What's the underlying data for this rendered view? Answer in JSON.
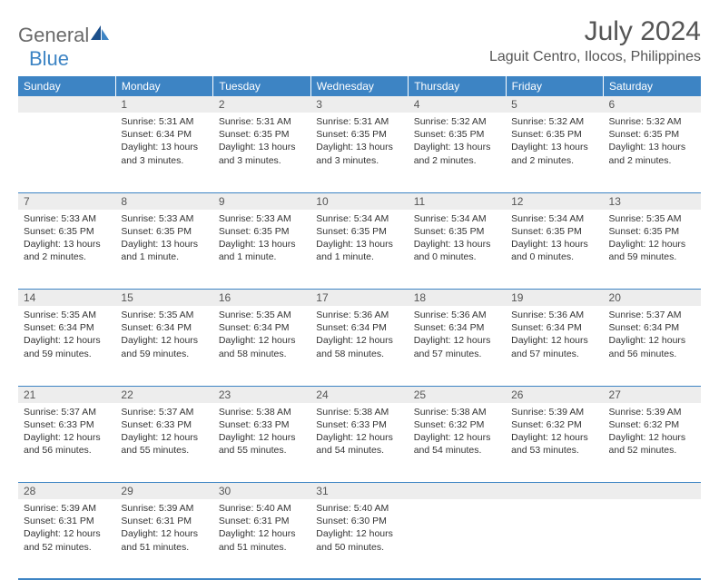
{
  "logo": {
    "text1": "General",
    "text2": "Blue"
  },
  "title": "July 2024",
  "location": "Laguit Centro, Ilocos, Philippines",
  "colors": {
    "header_bg": "#3d84c4",
    "daynum_bg": "#ededed",
    "rule": "#3d84c4",
    "logo_gray": "#6a6a6a",
    "logo_blue": "#3d84c4"
  },
  "weekdays": [
    "Sunday",
    "Monday",
    "Tuesday",
    "Wednesday",
    "Thursday",
    "Friday",
    "Saturday"
  ],
  "weeks": [
    {
      "nums": [
        "",
        "1",
        "2",
        "3",
        "4",
        "5",
        "6"
      ],
      "cells": [
        {
          "sunrise": "",
          "sunset": "",
          "daylight": ""
        },
        {
          "sunrise": "Sunrise: 5:31 AM",
          "sunset": "Sunset: 6:34 PM",
          "daylight": "Daylight: 13 hours and 3 minutes."
        },
        {
          "sunrise": "Sunrise: 5:31 AM",
          "sunset": "Sunset: 6:35 PM",
          "daylight": "Daylight: 13 hours and 3 minutes."
        },
        {
          "sunrise": "Sunrise: 5:31 AM",
          "sunset": "Sunset: 6:35 PM",
          "daylight": "Daylight: 13 hours and 3 minutes."
        },
        {
          "sunrise": "Sunrise: 5:32 AM",
          "sunset": "Sunset: 6:35 PM",
          "daylight": "Daylight: 13 hours and 2 minutes."
        },
        {
          "sunrise": "Sunrise: 5:32 AM",
          "sunset": "Sunset: 6:35 PM",
          "daylight": "Daylight: 13 hours and 2 minutes."
        },
        {
          "sunrise": "Sunrise: 5:32 AM",
          "sunset": "Sunset: 6:35 PM",
          "daylight": "Daylight: 13 hours and 2 minutes."
        }
      ]
    },
    {
      "nums": [
        "7",
        "8",
        "9",
        "10",
        "11",
        "12",
        "13"
      ],
      "cells": [
        {
          "sunrise": "Sunrise: 5:33 AM",
          "sunset": "Sunset: 6:35 PM",
          "daylight": "Daylight: 13 hours and 2 minutes."
        },
        {
          "sunrise": "Sunrise: 5:33 AM",
          "sunset": "Sunset: 6:35 PM",
          "daylight": "Daylight: 13 hours and 1 minute."
        },
        {
          "sunrise": "Sunrise: 5:33 AM",
          "sunset": "Sunset: 6:35 PM",
          "daylight": "Daylight: 13 hours and 1 minute."
        },
        {
          "sunrise": "Sunrise: 5:34 AM",
          "sunset": "Sunset: 6:35 PM",
          "daylight": "Daylight: 13 hours and 1 minute."
        },
        {
          "sunrise": "Sunrise: 5:34 AM",
          "sunset": "Sunset: 6:35 PM",
          "daylight": "Daylight: 13 hours and 0 minutes."
        },
        {
          "sunrise": "Sunrise: 5:34 AM",
          "sunset": "Sunset: 6:35 PM",
          "daylight": "Daylight: 13 hours and 0 minutes."
        },
        {
          "sunrise": "Sunrise: 5:35 AM",
          "sunset": "Sunset: 6:35 PM",
          "daylight": "Daylight: 12 hours and 59 minutes."
        }
      ]
    },
    {
      "nums": [
        "14",
        "15",
        "16",
        "17",
        "18",
        "19",
        "20"
      ],
      "cells": [
        {
          "sunrise": "Sunrise: 5:35 AM",
          "sunset": "Sunset: 6:34 PM",
          "daylight": "Daylight: 12 hours and 59 minutes."
        },
        {
          "sunrise": "Sunrise: 5:35 AM",
          "sunset": "Sunset: 6:34 PM",
          "daylight": "Daylight: 12 hours and 59 minutes."
        },
        {
          "sunrise": "Sunrise: 5:35 AM",
          "sunset": "Sunset: 6:34 PM",
          "daylight": "Daylight: 12 hours and 58 minutes."
        },
        {
          "sunrise": "Sunrise: 5:36 AM",
          "sunset": "Sunset: 6:34 PM",
          "daylight": "Daylight: 12 hours and 58 minutes."
        },
        {
          "sunrise": "Sunrise: 5:36 AM",
          "sunset": "Sunset: 6:34 PM",
          "daylight": "Daylight: 12 hours and 57 minutes."
        },
        {
          "sunrise": "Sunrise: 5:36 AM",
          "sunset": "Sunset: 6:34 PM",
          "daylight": "Daylight: 12 hours and 57 minutes."
        },
        {
          "sunrise": "Sunrise: 5:37 AM",
          "sunset": "Sunset: 6:34 PM",
          "daylight": "Daylight: 12 hours and 56 minutes."
        }
      ]
    },
    {
      "nums": [
        "21",
        "22",
        "23",
        "24",
        "25",
        "26",
        "27"
      ],
      "cells": [
        {
          "sunrise": "Sunrise: 5:37 AM",
          "sunset": "Sunset: 6:33 PM",
          "daylight": "Daylight: 12 hours and 56 minutes."
        },
        {
          "sunrise": "Sunrise: 5:37 AM",
          "sunset": "Sunset: 6:33 PM",
          "daylight": "Daylight: 12 hours and 55 minutes."
        },
        {
          "sunrise": "Sunrise: 5:38 AM",
          "sunset": "Sunset: 6:33 PM",
          "daylight": "Daylight: 12 hours and 55 minutes."
        },
        {
          "sunrise": "Sunrise: 5:38 AM",
          "sunset": "Sunset: 6:33 PM",
          "daylight": "Daylight: 12 hours and 54 minutes."
        },
        {
          "sunrise": "Sunrise: 5:38 AM",
          "sunset": "Sunset: 6:32 PM",
          "daylight": "Daylight: 12 hours and 54 minutes."
        },
        {
          "sunrise": "Sunrise: 5:39 AM",
          "sunset": "Sunset: 6:32 PM",
          "daylight": "Daylight: 12 hours and 53 minutes."
        },
        {
          "sunrise": "Sunrise: 5:39 AM",
          "sunset": "Sunset: 6:32 PM",
          "daylight": "Daylight: 12 hours and 52 minutes."
        }
      ]
    },
    {
      "nums": [
        "28",
        "29",
        "30",
        "31",
        "",
        "",
        ""
      ],
      "cells": [
        {
          "sunrise": "Sunrise: 5:39 AM",
          "sunset": "Sunset: 6:31 PM",
          "daylight": "Daylight: 12 hours and 52 minutes."
        },
        {
          "sunrise": "Sunrise: 5:39 AM",
          "sunset": "Sunset: 6:31 PM",
          "daylight": "Daylight: 12 hours and 51 minutes."
        },
        {
          "sunrise": "Sunrise: 5:40 AM",
          "sunset": "Sunset: 6:31 PM",
          "daylight": "Daylight: 12 hours and 51 minutes."
        },
        {
          "sunrise": "Sunrise: 5:40 AM",
          "sunset": "Sunset: 6:30 PM",
          "daylight": "Daylight: 12 hours and 50 minutes."
        },
        {
          "sunrise": "",
          "sunset": "",
          "daylight": ""
        },
        {
          "sunrise": "",
          "sunset": "",
          "daylight": ""
        },
        {
          "sunrise": "",
          "sunset": "",
          "daylight": ""
        }
      ]
    }
  ]
}
